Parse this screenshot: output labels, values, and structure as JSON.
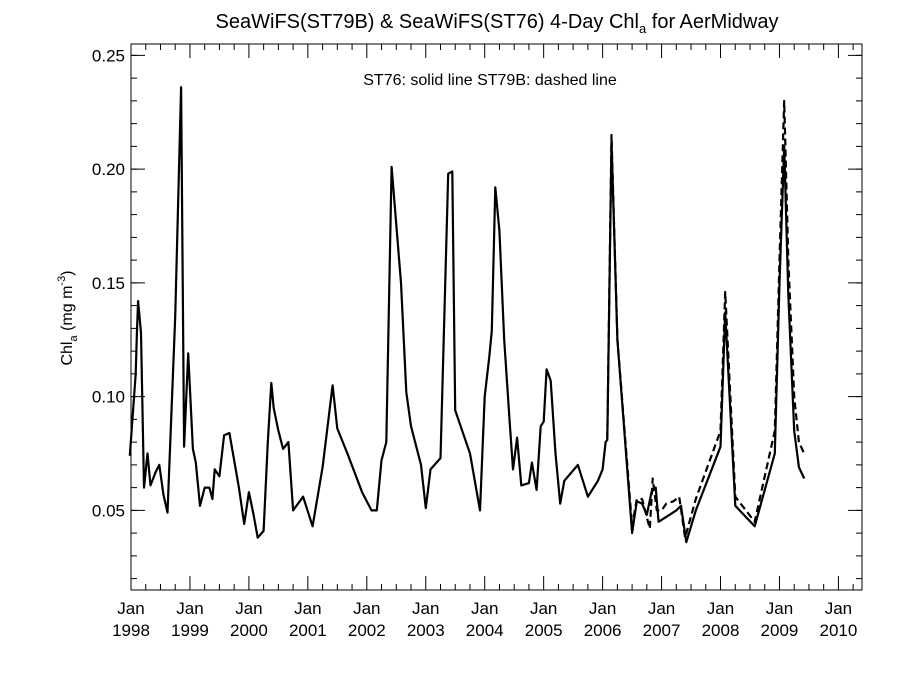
{
  "chart_data": {
    "type": "line",
    "title": {
      "part1": "SeaWiFS(ST79B) & SeaWiFS(ST76) 4-Day Chl",
      "sub": "a",
      "part2": " for AerMidway"
    },
    "ylabel": {
      "part1": "Chl",
      "sub": "a",
      "part2": " (mg m",
      "sup": "-3",
      "part3": ")"
    },
    "annotation": "ST76: solid line   ST79B: dashed line",
    "xlim": [
      1998.0,
      2010.4
    ],
    "ylim": [
      0.015,
      0.255
    ],
    "y_ticks": [
      0.05,
      0.1,
      0.15,
      0.2,
      0.25
    ],
    "y_tick_labels": [
      "0.05",
      "0.10",
      "0.15",
      "0.20",
      "0.25"
    ],
    "x_ticks": [
      {
        "x": 1998,
        "month": "Jan",
        "year": "1998"
      },
      {
        "x": 1999,
        "month": "Jan",
        "year": "1999"
      },
      {
        "x": 2000,
        "month": "Jan",
        "year": "2000"
      },
      {
        "x": 2001,
        "month": "Jan",
        "year": "2001"
      },
      {
        "x": 2002,
        "month": "Jan",
        "year": "2002"
      },
      {
        "x": 2003,
        "month": "Jan",
        "year": "2003"
      },
      {
        "x": 2004,
        "month": "Jan",
        "year": "2004"
      },
      {
        "x": 2005,
        "month": "Jan",
        "year": "2005"
      },
      {
        "x": 2006,
        "month": "Jan",
        "year": "2006"
      },
      {
        "x": 2007,
        "month": "Jan",
        "year": "2007"
      },
      {
        "x": 2008,
        "month": "Jan",
        "year": "2008"
      },
      {
        "x": 2009,
        "month": "Jan",
        "year": "2009"
      },
      {
        "x": 2010,
        "month": "Jan",
        "year": "2010"
      }
    ],
    "series": [
      {
        "name": "ST76",
        "style": "solid",
        "color": "#000000",
        "points": [
          [
            1997.98,
            0.074
          ],
          [
            1998.08,
            0.11
          ],
          [
            1998.1,
            0.128
          ],
          [
            1998.12,
            0.142
          ],
          [
            1998.17,
            0.128
          ],
          [
            1998.22,
            0.06
          ],
          [
            1998.28,
            0.075
          ],
          [
            1998.33,
            0.061
          ],
          [
            1998.42,
            0.067
          ],
          [
            1998.48,
            0.07
          ],
          [
            1998.55,
            0.057
          ],
          [
            1998.62,
            0.049
          ],
          [
            1998.75,
            0.135
          ],
          [
            1998.85,
            0.236
          ],
          [
            1998.9,
            0.078
          ],
          [
            1998.97,
            0.119
          ],
          [
            1999.05,
            0.077
          ],
          [
            1999.1,
            0.071
          ],
          [
            1999.17,
            0.052
          ],
          [
            1999.25,
            0.06
          ],
          [
            1999.33,
            0.06
          ],
          [
            1999.38,
            0.055
          ],
          [
            1999.42,
            0.068
          ],
          [
            1999.5,
            0.065
          ],
          [
            1999.58,
            0.083
          ],
          [
            1999.67,
            0.084
          ],
          [
            1999.83,
            0.06
          ],
          [
            1999.92,
            0.044
          ],
          [
            2000.0,
            0.058
          ],
          [
            2000.08,
            0.048
          ],
          [
            2000.15,
            0.038
          ],
          [
            2000.25,
            0.041
          ],
          [
            2000.32,
            0.08
          ],
          [
            2000.38,
            0.106
          ],
          [
            2000.42,
            0.095
          ],
          [
            2000.5,
            0.085
          ],
          [
            2000.58,
            0.077
          ],
          [
            2000.67,
            0.08
          ],
          [
            2000.75,
            0.05
          ],
          [
            2000.92,
            0.056
          ],
          [
            2001.08,
            0.043
          ],
          [
            2001.25,
            0.069
          ],
          [
            2001.42,
            0.105
          ],
          [
            2001.5,
            0.086
          ],
          [
            2001.67,
            0.075
          ],
          [
            2001.92,
            0.058
          ],
          [
            2002.08,
            0.05
          ],
          [
            2002.17,
            0.05
          ],
          [
            2002.25,
            0.072
          ],
          [
            2002.33,
            0.08
          ],
          [
            2002.42,
            0.201
          ],
          [
            2002.58,
            0.15
          ],
          [
            2002.67,
            0.102
          ],
          [
            2002.75,
            0.087
          ],
          [
            2002.92,
            0.07
          ],
          [
            2003.0,
            0.051
          ],
          [
            2003.08,
            0.068
          ],
          [
            2003.25,
            0.073
          ],
          [
            2003.38,
            0.198
          ],
          [
            2003.45,
            0.199
          ],
          [
            2003.5,
            0.094
          ],
          [
            2003.75,
            0.075
          ],
          [
            2003.92,
            0.05
          ],
          [
            2004.0,
            0.1
          ],
          [
            2004.08,
            0.118
          ],
          [
            2004.12,
            0.129
          ],
          [
            2004.18,
            0.192
          ],
          [
            2004.25,
            0.173
          ],
          [
            2004.33,
            0.125
          ],
          [
            2004.42,
            0.09
          ],
          [
            2004.48,
            0.068
          ],
          [
            2004.55,
            0.082
          ],
          [
            2004.62,
            0.061
          ],
          [
            2004.75,
            0.062
          ],
          [
            2004.8,
            0.071
          ],
          [
            2004.88,
            0.059
          ],
          [
            2004.95,
            0.087
          ],
          [
            2005.0,
            0.089
          ],
          [
            2005.05,
            0.112
          ],
          [
            2005.12,
            0.107
          ],
          [
            2005.2,
            0.075
          ],
          [
            2005.28,
            0.053
          ],
          [
            2005.35,
            0.063
          ],
          [
            2005.58,
            0.07
          ],
          [
            2005.75,
            0.056
          ],
          [
            2005.92,
            0.063
          ],
          [
            2006.0,
            0.068
          ],
          [
            2006.05,
            0.08
          ],
          [
            2006.08,
            0.081
          ],
          [
            2006.15,
            0.212
          ],
          [
            2006.25,
            0.125
          ],
          [
            2006.5,
            0.04
          ],
          [
            2006.58,
            0.054
          ],
          [
            2006.67,
            0.053
          ],
          [
            2006.75,
            0.048
          ],
          [
            2006.83,
            0.058
          ],
          [
            2006.9,
            0.06
          ],
          [
            2006.95,
            0.045
          ],
          [
            2007.25,
            0.05
          ],
          [
            2007.33,
            0.052
          ],
          [
            2007.42,
            0.036
          ],
          [
            2007.58,
            0.05
          ],
          [
            2008.0,
            0.078
          ],
          [
            2008.08,
            0.137
          ],
          [
            2008.25,
            0.052
          ],
          [
            2008.58,
            0.043
          ],
          [
            2008.92,
            0.075
          ],
          [
            2009.0,
            0.15
          ],
          [
            2009.08,
            0.21
          ],
          [
            2009.15,
            0.145
          ],
          [
            2009.25,
            0.085
          ],
          [
            2009.33,
            0.069
          ],
          [
            2009.42,
            0.064
          ]
        ]
      },
      {
        "name": "ST79B",
        "style": "dashed",
        "color": "#000000",
        "points": [
          [
            2006.08,
            0.082
          ],
          [
            2006.15,
            0.215
          ],
          [
            2006.25,
            0.125
          ],
          [
            2006.5,
            0.043
          ],
          [
            2006.58,
            0.055
          ],
          [
            2006.67,
            0.055
          ],
          [
            2006.75,
            0.047
          ],
          [
            2006.8,
            0.042
          ],
          [
            2006.85,
            0.064
          ],
          [
            2006.92,
            0.05
          ],
          [
            2007.0,
            0.05
          ],
          [
            2007.08,
            0.053
          ],
          [
            2007.2,
            0.054
          ],
          [
            2007.3,
            0.056
          ],
          [
            2007.4,
            0.038
          ],
          [
            2007.58,
            0.055
          ],
          [
            2008.0,
            0.085
          ],
          [
            2008.08,
            0.146
          ],
          [
            2008.25,
            0.056
          ],
          [
            2008.58,
            0.045
          ],
          [
            2008.92,
            0.085
          ],
          [
            2009.0,
            0.16
          ],
          [
            2009.08,
            0.23
          ],
          [
            2009.15,
            0.16
          ],
          [
            2009.25,
            0.1
          ],
          [
            2009.33,
            0.08
          ],
          [
            2009.42,
            0.075
          ]
        ]
      }
    ]
  }
}
